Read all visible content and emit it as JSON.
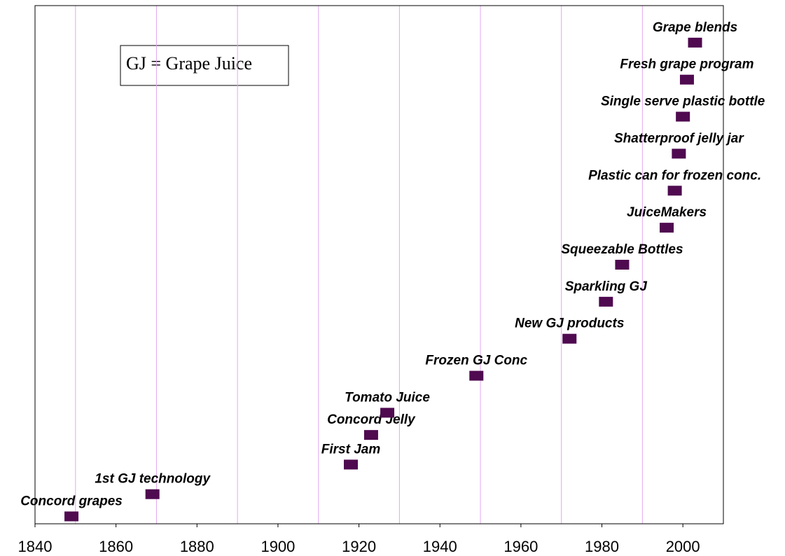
{
  "chart_data": {
    "type": "scatter",
    "annotation": "GJ = Grape Juice",
    "labels": [
      "Concord grapes",
      "1st GJ technology",
      "First Jam",
      "Concord Jelly",
      "Tomato Juice",
      "Frozen GJ Conc",
      "New GJ products",
      "Sparkling GJ",
      "Squeezable Bottles",
      "JuiceMakers",
      "Plastic can for frozen conc.",
      "Shatterproof jelly jar",
      "Single serve plastic bottle",
      "Fresh grape program",
      "Grape blends"
    ],
    "x": [
      1849,
      1869,
      1918,
      1923,
      1927,
      1949,
      1972,
      1981,
      1985,
      1996,
      1998,
      1999,
      2000,
      2001,
      2003
    ],
    "y": [
      0.2,
      0.8,
      1.6,
      2.4,
      3.0,
      4.0,
      5.0,
      6.0,
      7.0,
      8.0,
      9.0,
      10.0,
      11.0,
      12.0,
      13.0
    ],
    "color": "#4f0a50",
    "xlim": [
      1840,
      2010
    ],
    "ylim": [
      0,
      14
    ],
    "xticks": [
      1840,
      1860,
      1880,
      1900,
      1920,
      1940,
      1960,
      1980,
      2000
    ],
    "xgrid": [
      1850,
      1870,
      1890,
      1910,
      1930,
      1950,
      1970,
      1990
    ],
    "grid_color": "#e3a6f0"
  }
}
